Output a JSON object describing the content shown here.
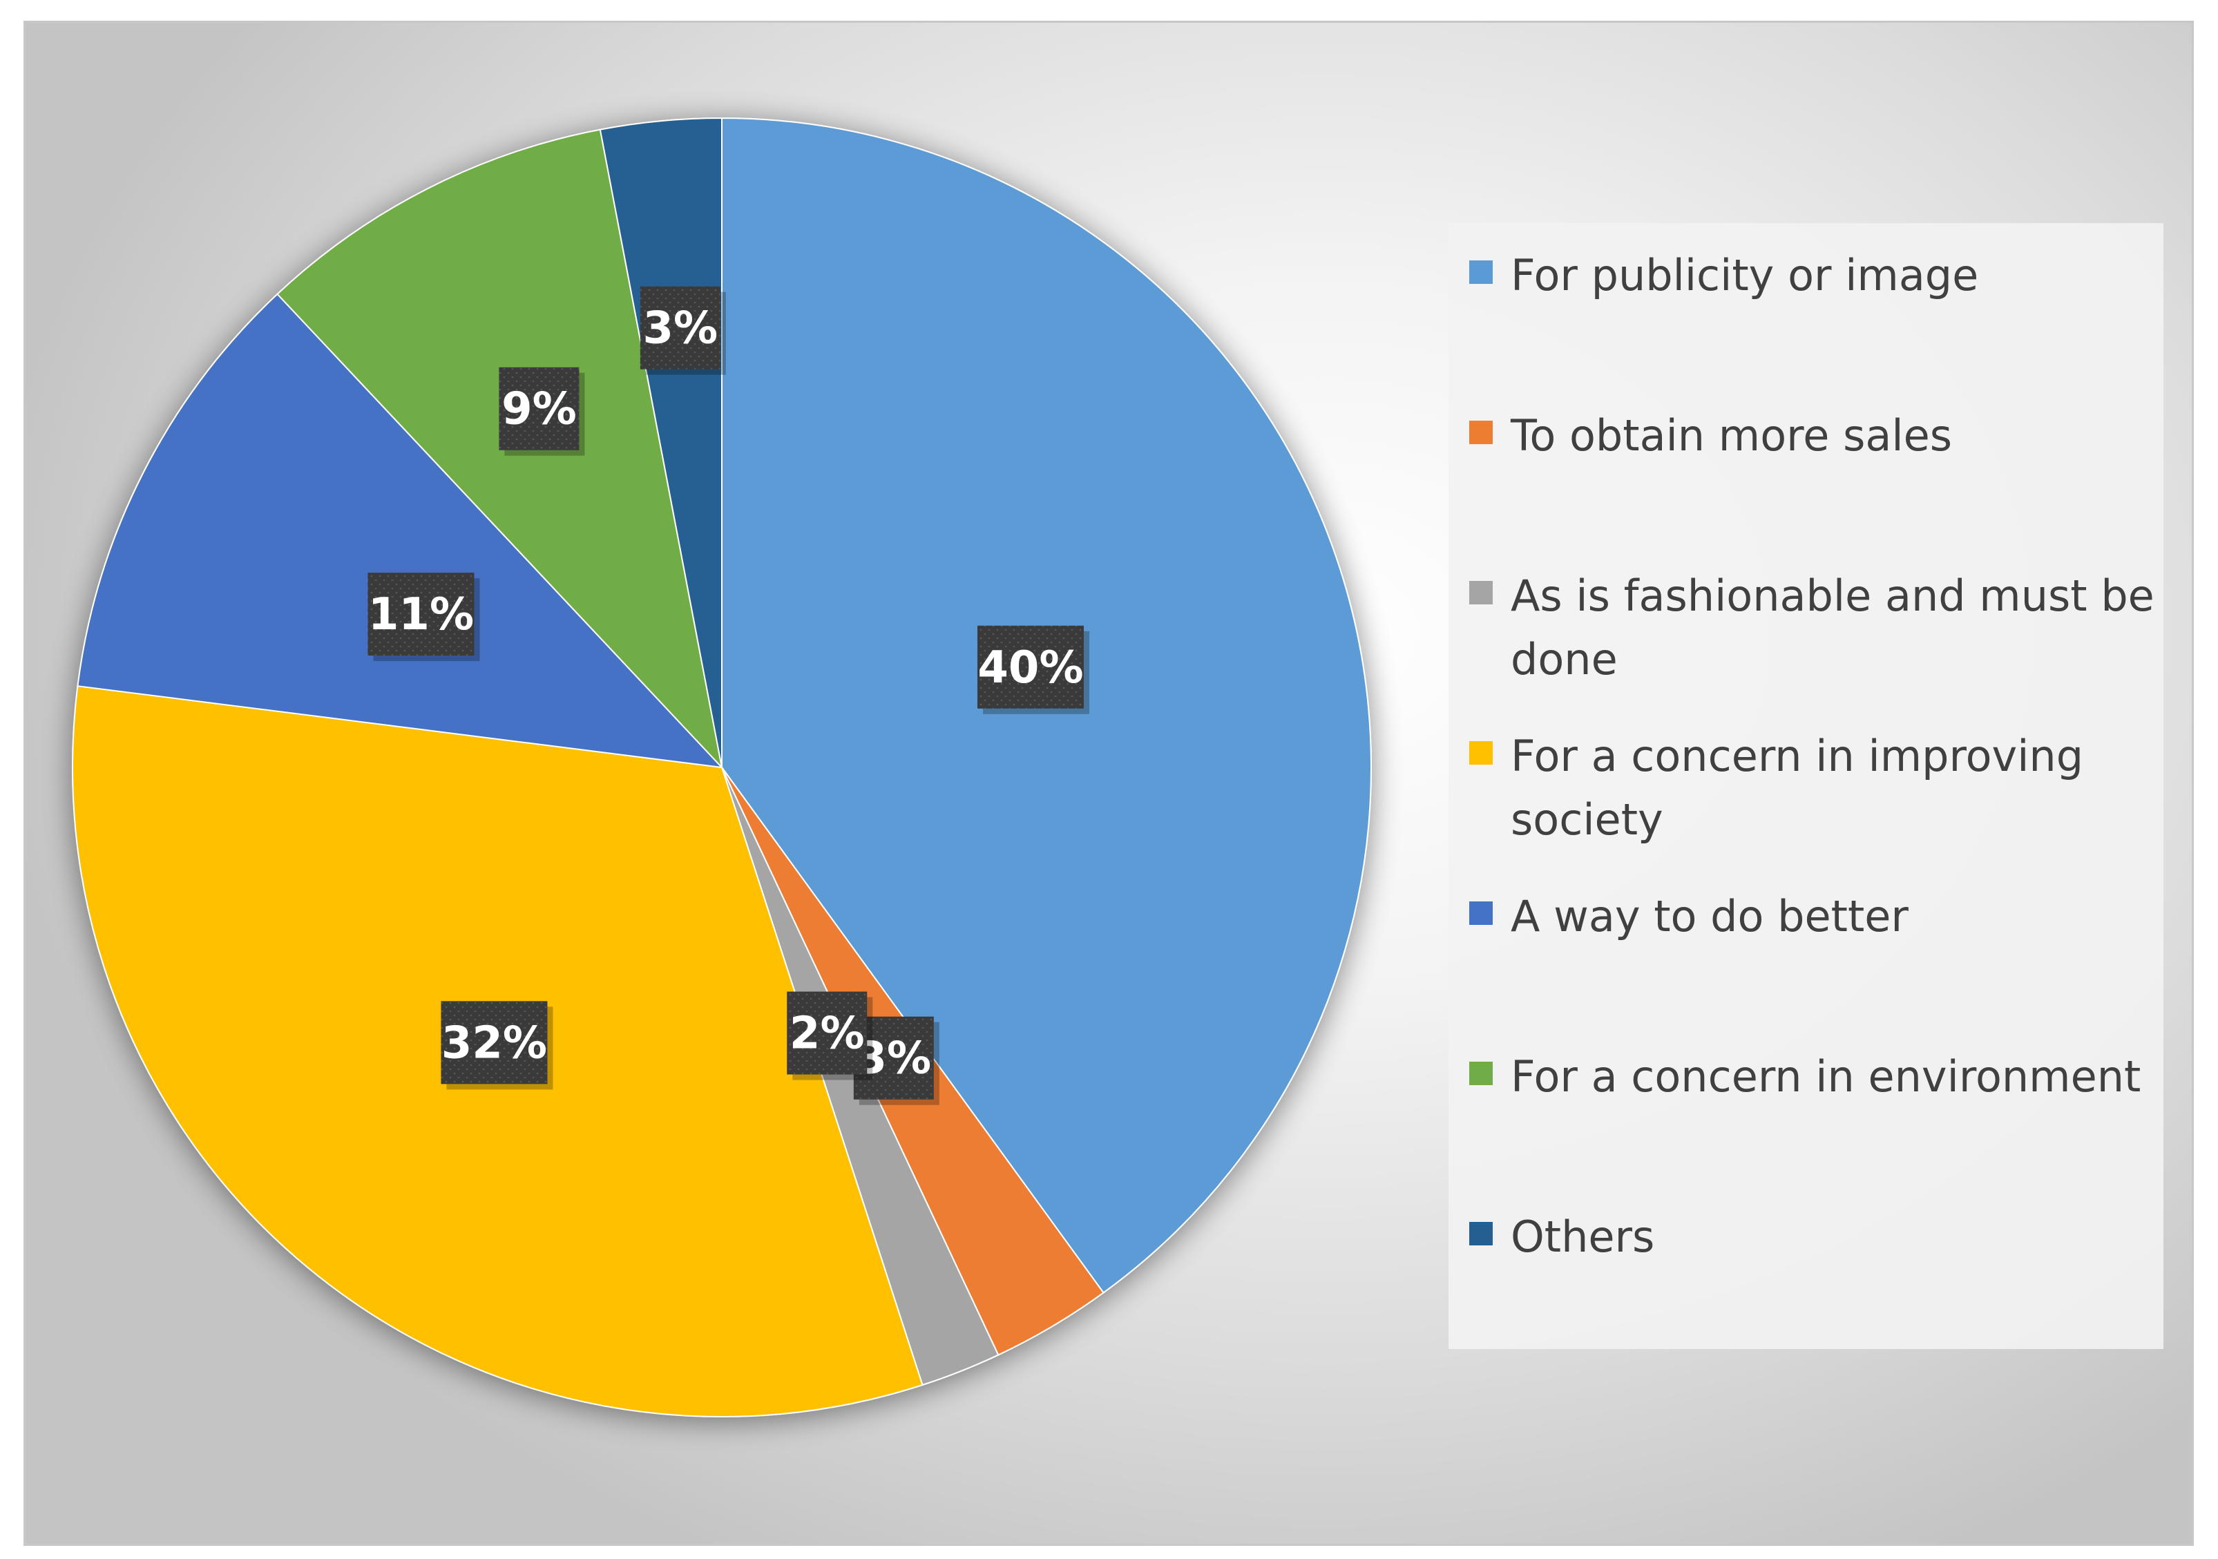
{
  "chart_data": {
    "type": "pie",
    "title": "",
    "categories": [
      "For publicity or image",
      "To obtain more sales",
      "As is fashionable and must be done",
      "For a concern in improving society",
      "A way to do better",
      "For a concern in environment",
      "Others"
    ],
    "values": [
      40,
      3,
      2,
      32,
      11,
      9,
      3
    ],
    "data_labels": [
      "40%",
      "3%",
      "2%",
      "32%",
      "11%",
      "9%",
      "3%"
    ],
    "colors": [
      "#5B9BD5",
      "#ED7D31",
      "#A5A5A5",
      "#FFC000",
      "#4472C4",
      "#70AD47",
      "#255E91"
    ],
    "start_angle_deg": 0,
    "direction": "clockwise",
    "legend_position": "right"
  }
}
